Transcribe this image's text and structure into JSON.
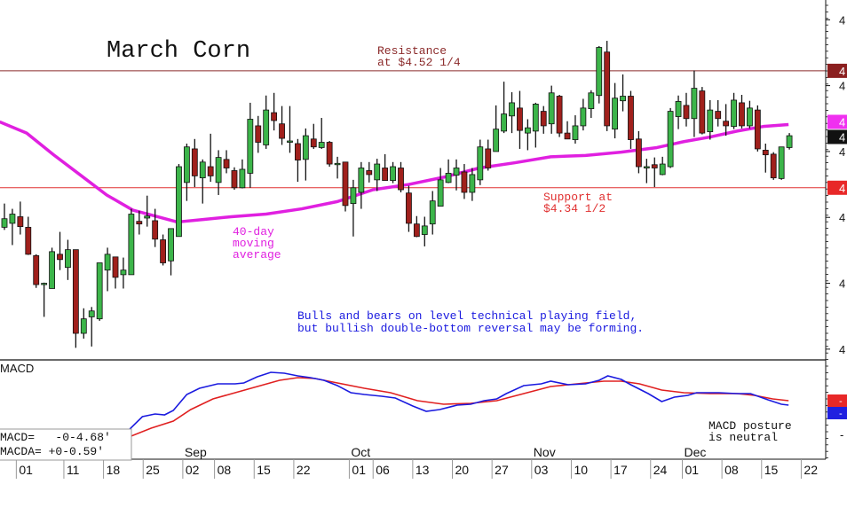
{
  "chart_data": {
    "type": "candlestick",
    "title": "March Corn",
    "price_ylim": [
      4.085,
      4.63
    ],
    "macd_ylim": [
      -17,
      5.2
    ],
    "colors": {
      "up": "#3cb54a",
      "down": "#a0201c",
      "ma": "#e020e0",
      "macd": "#1a1adf",
      "signal": "#e02020",
      "resistance": "#8b2a2a",
      "support": "#e03030"
    },
    "resistance": {
      "value": 4.5225,
      "label_lines": [
        "Resistance",
        "at $4.52 1/4"
      ]
    },
    "support": {
      "value": 4.345,
      "label_lines": [
        "Support at",
        "$4.34 1/2"
      ]
    },
    "ma_label_lines": [
      "40-day",
      "moving",
      "average"
    ],
    "comment_lines": [
      "Bulls and bears on level technical playing field,",
      "but bullish double-bottom reversal may be forming."
    ],
    "macd_title": "MACD",
    "macd_legend": [
      "MACD=   -0-4.68'",
      "MACDA= +0-0.59'"
    ],
    "macd_comment_lines": [
      "MACD posture",
      "is neutral"
    ],
    "right_axis_labels": [
      {
        "value": 4.6,
        "text": "4"
      },
      {
        "value": 4.5,
        "text": "4"
      },
      {
        "value": 4.4,
        "text": "4"
      },
      {
        "value": 4.3,
        "text": "4"
      },
      {
        "value": 4.2,
        "text": "4"
      },
      {
        "value": 4.1,
        "text": "4"
      }
    ],
    "right_axis_badges": [
      {
        "value": 4.5225,
        "text": "4",
        "color": "#8b1f1f"
      },
      {
        "value": 4.445,
        "text": "4",
        "color": "#f030f0"
      },
      {
        "value": 4.424,
        "text": "4",
        "color": "#111111"
      },
      {
        "value": 4.345,
        "text": "4",
        "color": "#e82828"
      }
    ],
    "macd_axis_labels": [
      {
        "value": -11.6,
        "text": "-"
      }
    ],
    "macd_badges": [
      {
        "value": -3.8,
        "text": "-",
        "color": "#e82828"
      },
      {
        "value": -5.4,
        "text": "-",
        "color": "#2020e0"
      }
    ],
    "x_ticks": [
      {
        "index": 2,
        "label": "01"
      },
      {
        "index": 8,
        "label": "11"
      },
      {
        "index": 13,
        "label": "18"
      },
      {
        "index": 18,
        "label": "25"
      },
      {
        "index": 23,
        "label": "02"
      },
      {
        "index": 27,
        "label": "08"
      },
      {
        "index": 32,
        "label": "15"
      },
      {
        "index": 37,
        "label": "22"
      },
      {
        "index": 44,
        "label": "01"
      },
      {
        "index": 47,
        "label": "06"
      },
      {
        "index": 52,
        "label": "13"
      },
      {
        "index": 57,
        "label": "20"
      },
      {
        "index": 62,
        "label": "27"
      },
      {
        "index": 67,
        "label": "03"
      },
      {
        "index": 72,
        "label": "10"
      },
      {
        "index": 77,
        "label": "17"
      },
      {
        "index": 82,
        "label": "24"
      },
      {
        "index": 86,
        "label": "01"
      },
      {
        "index": 91,
        "label": "08"
      },
      {
        "index": 96,
        "label": "15"
      },
      {
        "index": 101,
        "label": "22"
      }
    ],
    "months": [
      {
        "index": 23,
        "label": "Sep"
      },
      {
        "index": 44,
        "label": "Oct"
      },
      {
        "index": 67,
        "label": "Nov"
      },
      {
        "index": 86,
        "label": "Dec"
      }
    ],
    "ohlc": [
      [
        4.285,
        4.321,
        4.281,
        4.298
      ],
      [
        4.291,
        4.313,
        4.258,
        4.305
      ],
      [
        4.301,
        4.324,
        4.274,
        4.286
      ],
      [
        4.285,
        4.301,
        4.243,
        4.244
      ],
      [
        4.242,
        4.244,
        4.193,
        4.198
      ],
      [
        4.2,
        4.201,
        4.149,
        4.2
      ],
      [
        4.192,
        4.254,
        4.192,
        4.248
      ],
      [
        4.244,
        4.278,
        4.22,
        4.236
      ],
      [
        4.224,
        4.266,
        4.205,
        4.251
      ],
      [
        4.251,
        4.251,
        4.102,
        4.124
      ],
      [
        4.124,
        4.162,
        4.116,
        4.146
      ],
      [
        4.149,
        4.164,
        4.104,
        4.158
      ],
      [
        4.146,
        4.231,
        4.143,
        4.231
      ],
      [
        4.22,
        4.254,
        4.188,
        4.244
      ],
      [
        4.24,
        4.24,
        4.192,
        4.209
      ],
      [
        4.213,
        4.239,
        4.192,
        4.22
      ],
      [
        4.213,
        4.313,
        4.213,
        4.305
      ],
      [
        4.294,
        4.31,
        4.274,
        4.29
      ],
      [
        4.299,
        4.333,
        4.286,
        4.302
      ],
      [
        4.295,
        4.313,
        4.255,
        4.267
      ],
      [
        4.266,
        4.274,
        4.227,
        4.231
      ],
      [
        4.234,
        4.283,
        4.212,
        4.283
      ],
      [
        4.271,
        4.381,
        4.271,
        4.377
      ],
      [
        4.353,
        4.412,
        4.325,
        4.407
      ],
      [
        4.404,
        4.419,
        4.346,
        4.363
      ],
      [
        4.36,
        4.388,
        4.321,
        4.384
      ],
      [
        4.377,
        4.427,
        4.354,
        4.363
      ],
      [
        4.353,
        4.402,
        4.334,
        4.391
      ],
      [
        4.388,
        4.402,
        4.367,
        4.375
      ],
      [
        4.371,
        4.376,
        4.342,
        4.345
      ],
      [
        4.345,
        4.388,
        4.344,
        4.373
      ],
      [
        4.367,
        4.474,
        4.345,
        4.449
      ],
      [
        4.439,
        4.454,
        4.398,
        4.414
      ],
      [
        4.41,
        4.485,
        4.404,
        4.463
      ],
      [
        4.459,
        4.489,
        4.432,
        4.447
      ],
      [
        4.442,
        4.469,
        4.41,
        4.42
      ],
      [
        4.415,
        4.469,
        4.398,
        4.416
      ],
      [
        4.412,
        4.419,
        4.354,
        4.387
      ],
      [
        4.388,
        4.435,
        4.356,
        4.424
      ],
      [
        4.419,
        4.442,
        4.404,
        4.407
      ],
      [
        4.406,
        4.451,
        4.404,
        4.414
      ],
      [
        4.414,
        4.416,
        4.377,
        4.381
      ],
      [
        4.381,
        4.392,
        4.359,
        4.382
      ],
      [
        4.384,
        4.384,
        4.309,
        4.318
      ],
      [
        4.321,
        4.357,
        4.271,
        4.345
      ],
      [
        4.338,
        4.384,
        4.313,
        4.375
      ],
      [
        4.371,
        4.384,
        4.353,
        4.365
      ],
      [
        4.357,
        4.389,
        4.34,
        4.381
      ],
      [
        4.375,
        4.396,
        4.356,
        4.356
      ],
      [
        4.356,
        4.384,
        4.352,
        4.377
      ],
      [
        4.375,
        4.384,
        4.338,
        4.342
      ],
      [
        4.337,
        4.348,
        4.278,
        4.291
      ],
      [
        4.29,
        4.302,
        4.27,
        4.271
      ],
      [
        4.274,
        4.301,
        4.256,
        4.287
      ],
      [
        4.29,
        4.34,
        4.274,
        4.325
      ],
      [
        4.317,
        4.375,
        4.317,
        4.357
      ],
      [
        4.353,
        4.388,
        4.352,
        4.367
      ],
      [
        4.364,
        4.388,
        4.341,
        4.375
      ],
      [
        4.369,
        4.381,
        4.328,
        4.338
      ],
      [
        4.338,
        4.375,
        4.325,
        4.365
      ],
      [
        4.357,
        4.418,
        4.349,
        4.407
      ],
      [
        4.404,
        4.418,
        4.371,
        4.375
      ],
      [
        4.4,
        4.47,
        4.4,
        4.434
      ],
      [
        4.431,
        4.506,
        4.428,
        4.457
      ],
      [
        4.454,
        4.49,
        4.428,
        4.474
      ],
      [
        4.466,
        4.492,
        4.404,
        4.432
      ],
      [
        4.428,
        4.449,
        4.402,
        4.436
      ],
      [
        4.431,
        4.474,
        4.406,
        4.472
      ],
      [
        4.461,
        4.469,
        4.427,
        4.439
      ],
      [
        4.442,
        4.5,
        4.427,
        4.489
      ],
      [
        4.484,
        4.486,
        4.422,
        4.428
      ],
      [
        4.428,
        4.446,
        4.419,
        4.419
      ],
      [
        4.418,
        4.455,
        4.412,
        4.439
      ],
      [
        4.439,
        4.48,
        4.432,
        4.466
      ],
      [
        4.465,
        4.493,
        4.451,
        4.489
      ],
      [
        4.485,
        4.56,
        4.473,
        4.558
      ],
      [
        4.551,
        4.568,
        4.431,
        4.439
      ],
      [
        4.434,
        4.504,
        4.42,
        4.481
      ],
      [
        4.477,
        4.517,
        4.461,
        4.484
      ],
      [
        4.484,
        4.492,
        4.404,
        4.418
      ],
      [
        4.419,
        4.431,
        4.367,
        4.377
      ],
      [
        4.376,
        4.389,
        4.352,
        4.377
      ],
      [
        4.38,
        4.391,
        4.346,
        4.375
      ],
      [
        4.365,
        4.392,
        4.364,
        4.381
      ],
      [
        4.377,
        4.466,
        4.375,
        4.461
      ],
      [
        4.453,
        4.485,
        4.434,
        4.476
      ],
      [
        4.47,
        4.489,
        4.438,
        4.45
      ],
      [
        4.45,
        4.523,
        4.422,
        4.496
      ],
      [
        4.492,
        4.498,
        4.426,
        4.428
      ],
      [
        4.43,
        4.478,
        4.418,
        4.463
      ],
      [
        4.461,
        4.478,
        4.438,
        4.45
      ],
      [
        4.446,
        4.472,
        4.424,
        4.439
      ],
      [
        4.438,
        4.489,
        4.434,
        4.478
      ],
      [
        4.474,
        4.486,
        4.435,
        4.439
      ],
      [
        4.439,
        4.477,
        4.435,
        4.466
      ],
      [
        4.463,
        4.47,
        4.4,
        4.404
      ],
      [
        4.402,
        4.412,
        4.368,
        4.395
      ],
      [
        4.396,
        4.399,
        4.357,
        4.36
      ],
      [
        4.359,
        4.407,
        4.357,
        4.407
      ],
      [
        4.406,
        4.428,
        4.403,
        4.424
      ]
    ],
    "ma40": [
      [
        -0.6,
        4.445
      ],
      [
        2.8,
        4.428
      ],
      [
        6.2,
        4.395
      ],
      [
        9.5,
        4.365
      ],
      [
        12.9,
        4.334
      ],
      [
        16.2,
        4.311
      ],
      [
        19,
        4.302
      ],
      [
        21.8,
        4.293
      ],
      [
        25.2,
        4.297
      ],
      [
        28.6,
        4.301
      ],
      [
        33,
        4.305
      ],
      [
        37.5,
        4.313
      ],
      [
        42,
        4.324
      ],
      [
        46.5,
        4.342
      ],
      [
        51,
        4.35
      ],
      [
        55.4,
        4.361
      ],
      [
        59.9,
        4.375
      ],
      [
        64.4,
        4.383
      ],
      [
        68.9,
        4.392
      ],
      [
        73.3,
        4.394
      ],
      [
        77.8,
        4.399
      ],
      [
        82.3,
        4.406
      ],
      [
        85.7,
        4.415
      ],
      [
        89,
        4.422
      ],
      [
        92.4,
        4.431
      ],
      [
        95.7,
        4.438
      ],
      [
        98.9,
        4.441
      ]
    ],
    "macd": [
      [
        -0.6,
        -10.6
      ],
      [
        15.7,
        -10.4
      ],
      [
        17.4,
        -7.4
      ],
      [
        19,
        -6.8
      ],
      [
        20.2,
        -7
      ],
      [
        21.3,
        -6
      ],
      [
        23,
        -2.4
      ],
      [
        24.6,
        -1
      ],
      [
        26.9,
        0
      ],
      [
        29.1,
        0
      ],
      [
        30.2,
        0.2
      ],
      [
        31.9,
        1.6
      ],
      [
        33.6,
        2.6
      ],
      [
        35.3,
        2.4
      ],
      [
        37,
        1.8
      ],
      [
        38.6,
        1.4
      ],
      [
        40.3,
        0.8
      ],
      [
        42,
        -0.4
      ],
      [
        43.7,
        -2
      ],
      [
        45.4,
        -2.4
      ],
      [
        47.6,
        -2.8
      ],
      [
        49.3,
        -3.2
      ],
      [
        51.5,
        -5
      ],
      [
        53.2,
        -6.2
      ],
      [
        54.9,
        -5.8
      ],
      [
        57.1,
        -4.8
      ],
      [
        58.8,
        -4.6
      ],
      [
        60.5,
        -3.8
      ],
      [
        62.1,
        -3.4
      ],
      [
        63.3,
        -2.2
      ],
      [
        65.5,
        -0.4
      ],
      [
        67.7,
        0
      ],
      [
        68.9,
        0.6
      ],
      [
        71.1,
        -0.2
      ],
      [
        73.3,
        0
      ],
      [
        75,
        0.8
      ],
      [
        76.1,
        1.8
      ],
      [
        77.8,
        1
      ],
      [
        79,
        -0.2
      ],
      [
        81.2,
        -2.2
      ],
      [
        82.9,
        -4
      ],
      [
        84.5,
        -3
      ],
      [
        86.2,
        -2.6
      ],
      [
        87.3,
        -2
      ],
      [
        90.1,
        -2
      ],
      [
        92.4,
        -2.2
      ],
      [
        94.1,
        -2.2
      ],
      [
        96.3,
        -3.6
      ],
      [
        98,
        -4.6
      ],
      [
        98.9,
        -4.8
      ]
    ],
    "signal": [
      [
        -0.6,
        -12.4
      ],
      [
        15.7,
        -12
      ],
      [
        18.5,
        -10
      ],
      [
        21.3,
        -8.4
      ],
      [
        23.5,
        -5.8
      ],
      [
        26.3,
        -3.4
      ],
      [
        29.1,
        -2
      ],
      [
        31.9,
        -0.6
      ],
      [
        34.7,
        0.8
      ],
      [
        37,
        1.4
      ],
      [
        39.2,
        1.2
      ],
      [
        42,
        0.2
      ],
      [
        45.4,
        -1
      ],
      [
        48.7,
        -2
      ],
      [
        52.1,
        -3.8
      ],
      [
        55.4,
        -4.6
      ],
      [
        58.8,
        -4.4
      ],
      [
        62.1,
        -3.8
      ],
      [
        65.5,
        -2.2
      ],
      [
        68.9,
        -0.6
      ],
      [
        72.2,
        0
      ],
      [
        75.6,
        0.6
      ],
      [
        77.8,
        0.6
      ],
      [
        80.1,
        0
      ],
      [
        82.9,
        -1.4
      ],
      [
        85.7,
        -2
      ],
      [
        89,
        -2.2
      ],
      [
        92.4,
        -2.2
      ],
      [
        94.6,
        -2.6
      ],
      [
        96.9,
        -3.4
      ],
      [
        98.9,
        -3.8
      ]
    ]
  }
}
